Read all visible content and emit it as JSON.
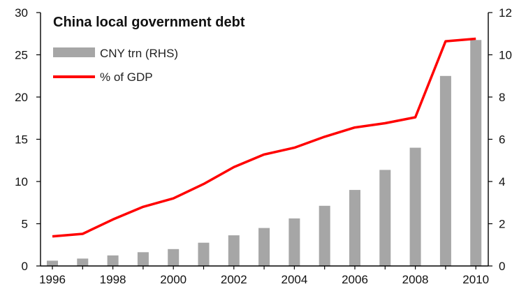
{
  "chart_data": {
    "type": "bar",
    "title": "China local government debt",
    "xlabel": "",
    "ylabel": "",
    "x": [
      1996,
      1997,
      1998,
      1999,
      2000,
      2001,
      2002,
      2003,
      2004,
      2005,
      2006,
      2007,
      2008,
      2009,
      2010
    ],
    "x_tick_labels": [
      "1996",
      "1998",
      "2000",
      "2002",
      "2004",
      "2006",
      "2008",
      "2010"
    ],
    "y_left": {
      "lim": [
        0,
        30
      ],
      "ticks": [
        "0",
        "5",
        "10",
        "15",
        "20",
        "25",
        "30"
      ]
    },
    "y_right": {
      "lim": [
        0,
        12
      ],
      "ticks": [
        "0",
        "2",
        "4",
        "6",
        "8",
        "10",
        "12"
      ]
    },
    "grid": false,
    "legend_position": "top-left",
    "series": [
      {
        "name": "CNY trn (RHS)",
        "type": "bar",
        "axis": "right",
        "color": "#a6a6a6",
        "values": [
          0.25,
          0.35,
          0.5,
          0.65,
          0.8,
          1.1,
          1.45,
          1.8,
          2.25,
          2.85,
          3.6,
          4.55,
          5.6,
          9.0,
          10.7
        ]
      },
      {
        "name": "% of GDP",
        "type": "line",
        "axis": "left",
        "color": "#ff0000",
        "values": [
          3.5,
          3.8,
          5.5,
          7.0,
          8.0,
          9.7,
          11.7,
          13.2,
          14.0,
          15.3,
          16.4,
          16.9,
          17.6,
          26.6,
          26.9
        ]
      }
    ]
  }
}
